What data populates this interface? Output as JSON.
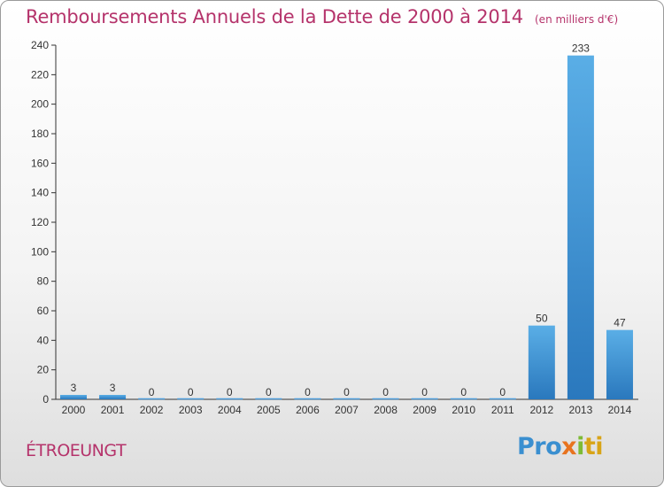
{
  "title": "Remboursements Annuels de la Dette de 2000 à 2014",
  "unit_note": "(en milliers d'€)",
  "commune": "ÉTROEUNGT",
  "logo": {
    "p1": "Pro",
    "p2": "x",
    "p3": "i",
    "p4": "ti"
  },
  "colors": {
    "title": "#b5336b",
    "bar_light": "#5aaee6",
    "bar_dark": "#2a78bd",
    "axis": "#333333"
  },
  "chart_data": {
    "type": "bar",
    "title": "Remboursements Annuels de la Dette de 2000 à 2014",
    "xlabel": "",
    "ylabel": "",
    "categories": [
      "2000",
      "2001",
      "2002",
      "2003",
      "2004",
      "2005",
      "2006",
      "2007",
      "2008",
      "2009",
      "2010",
      "2011",
      "2012",
      "2013",
      "2014"
    ],
    "values": [
      3,
      3,
      0,
      0,
      0,
      0,
      0,
      0,
      0,
      0,
      0,
      0,
      50,
      233,
      47
    ],
    "ylim": [
      0,
      240
    ],
    "yticks": [
      0,
      20,
      40,
      60,
      80,
      100,
      120,
      140,
      160,
      180,
      200,
      220,
      240
    ],
    "grid": false,
    "legend": "none"
  }
}
